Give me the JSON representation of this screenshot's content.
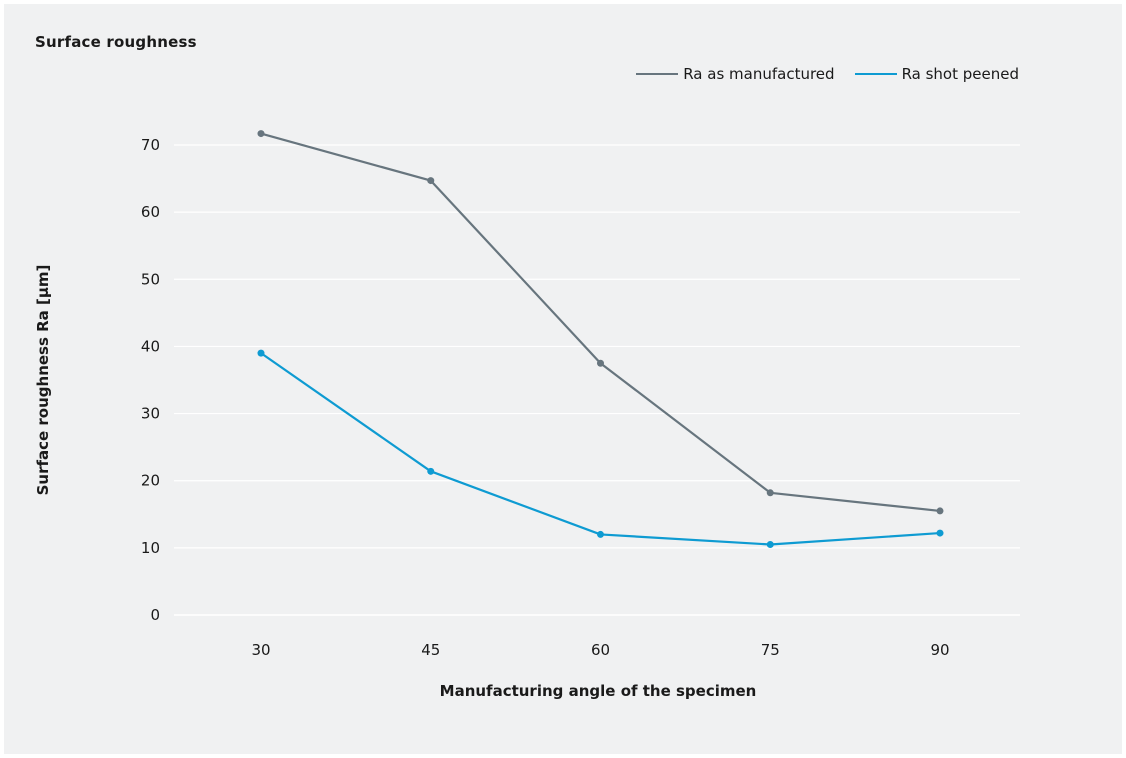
{
  "chart_data": {
    "type": "line",
    "title": "Surface roughness",
    "xlabel": "Manufacturing angle of the specimen",
    "ylabel": "Surface roughness Ra [µm]",
    "categories": [
      "30",
      "45",
      "60",
      "75",
      "90"
    ],
    "x": [
      30,
      45,
      60,
      75,
      90
    ],
    "ylim": [
      0,
      70
    ],
    "yticks": [
      0,
      10,
      20,
      30,
      40,
      50,
      60,
      70
    ],
    "yticklabels": [
      "0",
      "10",
      "20",
      "30",
      "40",
      "50",
      "60",
      "70"
    ],
    "grid": true,
    "legend_position": "top-right",
    "series": [
      {
        "name": "Ra as manufactured",
        "color": "#67757e",
        "values": [
          71.7,
          64.7,
          37.5,
          18.2,
          15.5
        ]
      },
      {
        "name": "Ra shot peened",
        "color": "#0e9bd2",
        "values": [
          39.0,
          21.4,
          12.0,
          10.5,
          12.2
        ]
      }
    ]
  }
}
